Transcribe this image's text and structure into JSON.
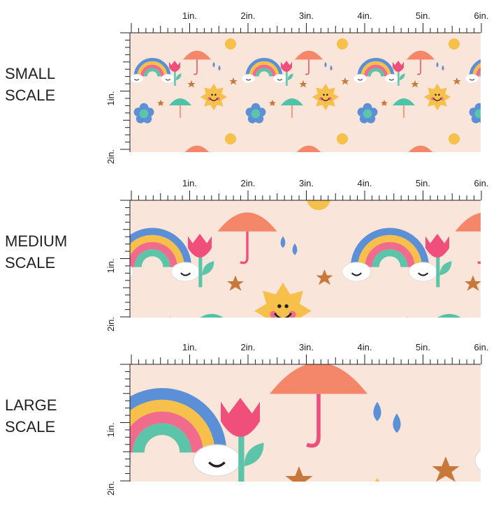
{
  "panels": [
    {
      "label": [
        "SMALL",
        "SCALE"
      ]
    },
    {
      "label": [
        "MEDIUM",
        "SCALE"
      ]
    },
    {
      "label": [
        "LARGE",
        "SCALE"
      ]
    }
  ],
  "ruler": {
    "x_labels": [
      "1in.",
      "2in.",
      "3in.",
      "4in.",
      "5in.",
      "6in."
    ],
    "y_labels": [
      "1in.",
      "2in."
    ]
  }
}
